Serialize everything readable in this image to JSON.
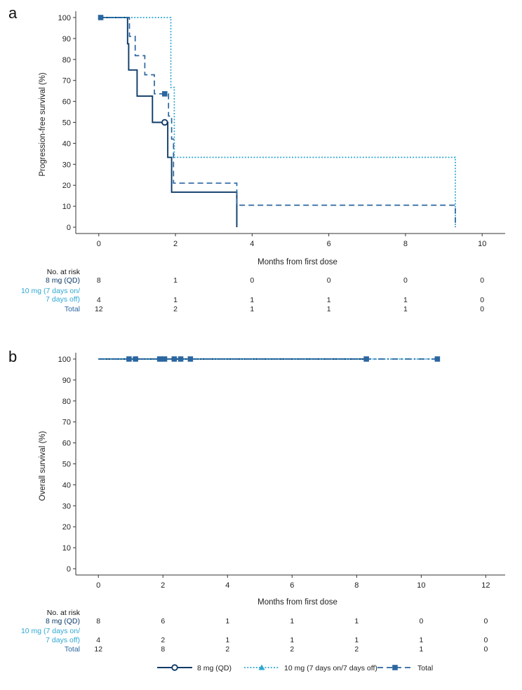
{
  "colors": {
    "dark": "#0f3b68",
    "light": "#2fa7d3",
    "mid": "#2a66a0",
    "axis": "#333333",
    "text": "#222222"
  },
  "legend": {
    "items": [
      {
        "label": "8 mg (QD)",
        "color": "#0f3b68",
        "marker": "circle-open",
        "dash": "solid"
      },
      {
        "label": "10 mg (7 days on/7 days off)",
        "color": "#2fa7d3",
        "marker": "triangle",
        "dash": "dotted"
      },
      {
        "label": "Total",
        "color": "#2a66a0",
        "marker": "square",
        "dash": "dashed"
      }
    ]
  },
  "chart_data": [
    {
      "type": "line",
      "panel": "a",
      "title": "",
      "xlabel": "Months from first dose",
      "ylabel": "Progression-free survival (%)",
      "xlim": [
        -0.6,
        10.6
      ],
      "ylim": [
        -3,
        101
      ],
      "xticks": [
        0,
        2,
        4,
        6,
        8,
        10
      ],
      "yticks": [
        0,
        10,
        20,
        30,
        40,
        50,
        60,
        70,
        80,
        90,
        100
      ],
      "series": [
        {
          "name": "8 mg (QD)",
          "color": "#0f3b68",
          "dash": "solid",
          "x": [
            0,
            0.75,
            0.75,
            0.78,
            0.78,
            1.0,
            1.0,
            1.4,
            1.4,
            1.8,
            1.8,
            1.9,
            1.9,
            3.6,
            3.6
          ],
          "y": [
            100,
            100,
            87.5,
            87.5,
            75,
            75,
            62.5,
            62.5,
            50,
            50,
            33.3,
            33.3,
            16.7,
            16.7,
            0
          ],
          "censored": [
            {
              "x": 1.72,
              "y": 50,
              "marker": "circle-open"
            }
          ]
        },
        {
          "name": "10 mg (7 days on/7 days off)",
          "color": "#2fa7d3",
          "dash": "dotted",
          "x": [
            0,
            1.88,
            1.88,
            1.97,
            1.97,
            9.3,
            9.3
          ],
          "y": [
            100,
            100,
            66.7,
            66.7,
            33.3,
            33.3,
            0
          ],
          "censored": []
        },
        {
          "name": "Total",
          "color": "#2a66a0",
          "dash": "dashed",
          "x": [
            0,
            0.8,
            0.8,
            0.95,
            0.95,
            1.2,
            1.2,
            1.45,
            1.45,
            1.82,
            1.82,
            1.9,
            1.9,
            1.95,
            1.95,
            3.6,
            3.6,
            9.3,
            9.3
          ],
          "y": [
            100,
            100,
            91,
            91,
            81.8,
            81.8,
            72.7,
            72.7,
            63.6,
            63.6,
            53,
            53,
            42,
            42,
            21,
            21,
            10.5,
            10.5,
            0
          ],
          "censored": [
            {
              "x": 0.05,
              "y": 100,
              "marker": "square"
            },
            {
              "x": 1.72,
              "y": 63.6,
              "marker": "square"
            }
          ]
        }
      ],
      "risk_table": {
        "title": "No. at risk",
        "rows": [
          {
            "label_lines": [
              "8 mg (QD)"
            ],
            "color": "#0f3b68",
            "values": [
              "8",
              "1",
              "0",
              "0",
              "0",
              "0"
            ]
          },
          {
            "label_lines": [
              "10 mg (7 days on/",
              "7 days off)"
            ],
            "color": "#2fa7d3",
            "values": [
              "4",
              "1",
              "1",
              "1",
              "1",
              "0"
            ]
          },
          {
            "label_lines": [
              "Total"
            ],
            "color": "#2a66a0",
            "values": [
              "12",
              "2",
              "1",
              "1",
              "1",
              "0"
            ]
          }
        ]
      }
    },
    {
      "type": "line",
      "panel": "b",
      "title": "",
      "xlabel": "Months from first dose",
      "ylabel": "Overall survival (%)",
      "xlim": [
        -0.7,
        12.6
      ],
      "ylim": [
        -3,
        101
      ],
      "xticks": [
        0,
        2,
        4,
        6,
        8,
        10,
        12
      ],
      "yticks": [
        0,
        10,
        20,
        30,
        40,
        50,
        60,
        70,
        80,
        90,
        100
      ],
      "series": [
        {
          "name": "8 mg (QD)",
          "color": "#0f3b68",
          "dash": "solid",
          "x": [
            0,
            8.3
          ],
          "y": [
            100,
            100
          ],
          "censored": []
        },
        {
          "name": "10 mg (7 days on/7 days off)",
          "color": "#2fa7d3",
          "dash": "dotted",
          "x": [
            0,
            10.5
          ],
          "y": [
            100,
            100
          ],
          "censored": []
        },
        {
          "name": "Total",
          "color": "#2a66a0",
          "dash": "dashdot",
          "x": [
            0,
            10.5
          ],
          "y": [
            100,
            100
          ],
          "censored": [
            {
              "x": 0.95,
              "y": 100,
              "marker": "square"
            },
            {
              "x": 1.15,
              "y": 100,
              "marker": "square"
            },
            {
              "x": 1.9,
              "y": 100,
              "marker": "square"
            },
            {
              "x": 2.05,
              "y": 100,
              "marker": "square"
            },
            {
              "x": 2.35,
              "y": 100,
              "marker": "square"
            },
            {
              "x": 2.55,
              "y": 100,
              "marker": "square"
            },
            {
              "x": 2.85,
              "y": 100,
              "marker": "square"
            },
            {
              "x": 8.3,
              "y": 100,
              "marker": "square"
            },
            {
              "x": 10.5,
              "y": 100,
              "marker": "square"
            }
          ]
        }
      ],
      "risk_table": {
        "title": "No. at risk",
        "rows": [
          {
            "label_lines": [
              "8 mg (QD)"
            ],
            "color": "#0f3b68",
            "values": [
              "8",
              "6",
              "1",
              "1",
              "1",
              "0",
              "0"
            ]
          },
          {
            "label_lines": [
              "10 mg (7 days on/",
              "7 days off)"
            ],
            "color": "#2fa7d3",
            "values": [
              "4",
              "2",
              "1",
              "1",
              "1",
              "1",
              "0"
            ]
          },
          {
            "label_lines": [
              "Total"
            ],
            "color": "#2a66a0",
            "values": [
              "12",
              "8",
              "2",
              "2",
              "2",
              "1",
              "0"
            ]
          }
        ]
      }
    }
  ]
}
